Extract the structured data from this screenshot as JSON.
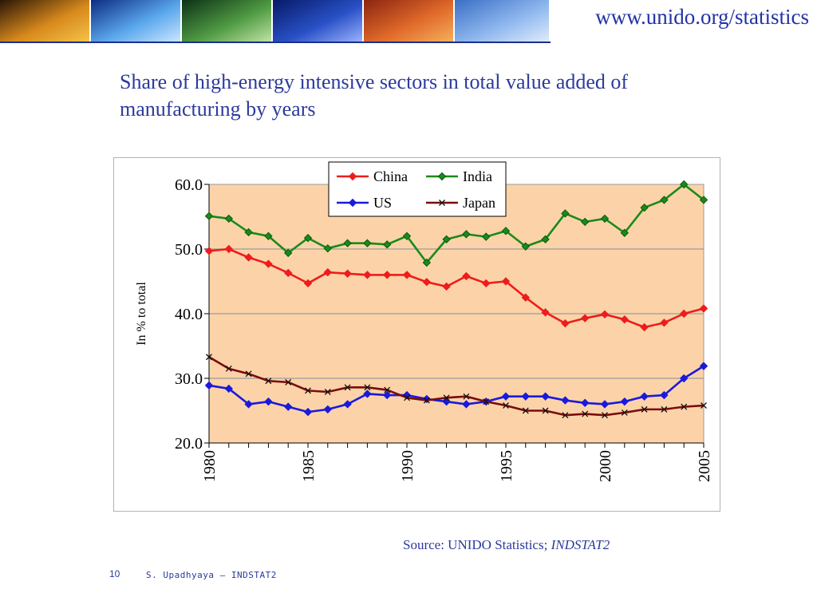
{
  "header": {
    "url": "www.unido.org/statistics",
    "tiles": [
      {
        "name": "kid-kite-photo",
        "colors": [
          "#2a1606",
          "#d7891c",
          "#f6c64a"
        ]
      },
      {
        "name": "lab-tubes-photo",
        "colors": [
          "#0d2c83",
          "#5aa7ec",
          "#cfe8ff"
        ]
      },
      {
        "name": "plant-leaf-photo",
        "colors": [
          "#0c3116",
          "#4f9a43",
          "#c4e6a9"
        ]
      },
      {
        "name": "circuit-board-photo",
        "colors": [
          "#071a66",
          "#2850c6",
          "#9fb5ff"
        ]
      },
      {
        "name": "flower-photo",
        "colors": [
          "#8c2410",
          "#e06a2a",
          "#f7b25f"
        ]
      },
      {
        "name": "wind-turbine-photo",
        "colors": [
          "#3a6fc5",
          "#8fb7ee",
          "#e2eefc"
        ]
      }
    ]
  },
  "title": "Share of high-energy intensive sectors in total value added of manufacturing by years",
  "chart_data": {
    "type": "line",
    "ylabel": "In % to total",
    "xlabel": "",
    "ylim": [
      20,
      60
    ],
    "yticks": [
      "20.0",
      "30.0",
      "40.0",
      "50.0",
      "60.0"
    ],
    "xticks": [
      "1980",
      "1985",
      "1990",
      "1995",
      "2000",
      "2005"
    ],
    "plot_background": "#fcd3a8",
    "x": [
      1980,
      1981,
      1982,
      1983,
      1984,
      1985,
      1986,
      1987,
      1988,
      1989,
      1990,
      1991,
      1992,
      1993,
      1994,
      1995,
      1996,
      1997,
      1998,
      1999,
      2000,
      2001,
      2002,
      2003,
      2004,
      2005
    ],
    "series": [
      {
        "name": "China",
        "color": "#ee1c1c",
        "marker": "diamond",
        "values": [
          49.7,
          50.0,
          48.7,
          47.7,
          46.3,
          44.7,
          46.4,
          46.2,
          46.0,
          46.0,
          46.0,
          44.9,
          44.2,
          45.8,
          44.7,
          45.0,
          42.5,
          40.2,
          38.5,
          39.3,
          39.9,
          39.1,
          37.9,
          38.6,
          40.0,
          40.8
        ]
      },
      {
        "name": "India",
        "color": "#1a8a1a",
        "marker": "diamond",
        "values": [
          55.1,
          54.7,
          52.6,
          52.0,
          49.4,
          51.7,
          50.1,
          50.9,
          50.9,
          50.7,
          52.0,
          47.9,
          51.5,
          52.3,
          51.9,
          52.8,
          50.4,
          51.5,
          55.5,
          54.2,
          54.7,
          52.5,
          56.4,
          57.6,
          60.0,
          57.6
        ]
      },
      {
        "name": "US",
        "color": "#1a1adc",
        "marker": "diamond",
        "values": [
          28.9,
          28.4,
          26.0,
          26.4,
          25.6,
          24.8,
          25.2,
          26.0,
          27.6,
          27.4,
          27.4,
          26.8,
          26.4,
          26.0,
          26.4,
          27.2,
          27.2,
          27.2,
          26.6,
          26.2,
          26.0,
          26.4,
          27.2,
          27.4,
          30.0,
          31.9
        ]
      },
      {
        "name": "Japan",
        "color": "#7a0c0c",
        "marker": "cross",
        "values": [
          33.3,
          31.5,
          30.7,
          29.6,
          29.4,
          28.1,
          27.9,
          28.6,
          28.6,
          28.2,
          27.0,
          26.6,
          27.0,
          27.2,
          26.4,
          25.8,
          25.0,
          25.0,
          24.3,
          24.5,
          24.3,
          24.7,
          25.2,
          25.2,
          25.6,
          25.8
        ]
      }
    ],
    "legend": "top-center-right",
    "grid": true
  },
  "source": {
    "prefix": "Source: UNIDO Statistics; ",
    "dataset": "INDSTAT2"
  },
  "footer": {
    "page_number": "10",
    "author": "S. Upadhyaya – INDSTAT2"
  }
}
